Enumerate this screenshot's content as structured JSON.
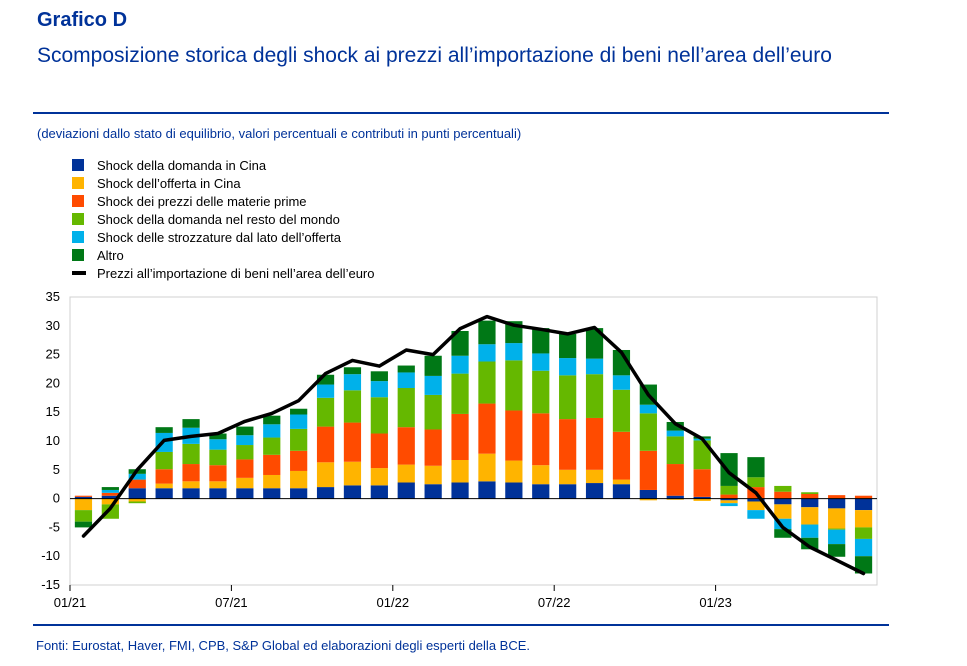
{
  "header": {
    "label": "Grafico D",
    "title": "Scomposizione storica degli shock ai prezzi all’importazione di beni nell’area dell’euro"
  },
  "subtitle": "(deviazioni dallo stato di equilibrio, valori percentuali e contributi in punti percentuali)",
  "source": "Fonti: Eurostat, Haver, FMI, CPB, S&P Global ed elaborazioni degli esperti della BCE.",
  "colors": {
    "china_demand": "#003299",
    "china_supply": "#FFB400",
    "commodity": "#FF4B00",
    "row_demand": "#65B800",
    "bottleneck": "#00B1EA",
    "other": "#007816",
    "line": "#000000"
  },
  "chart_data": {
    "type": "bar",
    "stacked": true,
    "title": "",
    "xlabel": "",
    "ylabel": "",
    "ylim": [
      -15,
      35
    ],
    "yticks": [
      35,
      30,
      25,
      20,
      15,
      10,
      5,
      0,
      -5,
      -10,
      -15
    ],
    "x_tick_labels": [
      {
        "index": 0,
        "label": "01/21"
      },
      {
        "index": 6,
        "label": "07/21"
      },
      {
        "index": 12,
        "label": "01/22"
      },
      {
        "index": 18,
        "label": "07/22"
      },
      {
        "index": 24,
        "label": "01/23"
      }
    ],
    "categories": [
      "01/21",
      "02/21",
      "03/21",
      "04/21",
      "05/21",
      "06/21",
      "07/21",
      "08/21",
      "09/21",
      "10/21",
      "11/21",
      "12/21",
      "01/22",
      "02/22",
      "03/22",
      "04/22",
      "05/22",
      "06/22",
      "07/22",
      "08/22",
      "09/22",
      "10/22",
      "11/22",
      "12/22",
      "01/23",
      "02/23",
      "03/23",
      "04/23",
      "05/23",
      "06/23"
    ],
    "series": [
      {
        "name": "Shock della domanda in Cina",
        "color_key": "china_demand",
        "values": [
          0.3,
          0.5,
          1.8,
          1.8,
          1.8,
          1.8,
          1.8,
          1.8,
          1.8,
          2.0,
          2.3,
          2.3,
          2.8,
          2.5,
          2.8,
          3.0,
          2.8,
          2.5,
          2.5,
          2.7,
          2.5,
          1.5,
          0.5,
          0.3,
          -0.3,
          -0.5,
          -1.0,
          -1.5,
          -1.7,
          -2.0
        ]
      },
      {
        "name": "Shock dell’offerta in Cina",
        "color_key": "china_supply",
        "values": [
          -2.0,
          -1.0,
          -0.5,
          0.8,
          1.2,
          1.2,
          1.8,
          2.3,
          3.0,
          4.3,
          4.1,
          3.0,
          3.1,
          3.2,
          3.9,
          4.8,
          3.8,
          3.3,
          2.5,
          2.3,
          0.8,
          -0.3,
          -0.2,
          -0.4,
          -0.5,
          -1.5,
          -2.5,
          -3.0,
          -3.5,
          -3.0
        ]
      },
      {
        "name": "Shock dei prezzi delle materie prime",
        "color_key": "commodity",
        "values": [
          0.2,
          0.5,
          1.5,
          2.5,
          3.0,
          2.8,
          3.2,
          3.5,
          3.5,
          6.2,
          6.8,
          6.0,
          6.5,
          6.3,
          8.0,
          8.7,
          8.7,
          9.0,
          8.8,
          9.0,
          8.3,
          6.8,
          5.5,
          4.8,
          0.7,
          2.0,
          1.2,
          0.8,
          0.6,
          0.5
        ]
      },
      {
        "name": "Shock della domanda nel resto del mondo",
        "color_key": "row_demand",
        "values": [
          -2.0,
          -2.5,
          -0.3,
          3.0,
          3.5,
          2.7,
          2.5,
          3.0,
          3.8,
          5.0,
          5.6,
          6.3,
          6.8,
          6.0,
          7.0,
          7.3,
          8.7,
          7.4,
          7.6,
          7.6,
          7.3,
          6.5,
          4.8,
          5.0,
          1.5,
          1.7,
          1.0,
          0.3,
          -0.2,
          -2.0
        ]
      },
      {
        "name": "Shock delle strozzature dal lato dell’offerta",
        "color_key": "bottleneck",
        "values": [
          0.0,
          0.5,
          1.0,
          3.3,
          2.8,
          1.8,
          1.7,
          2.3,
          2.5,
          2.3,
          2.8,
          2.8,
          2.7,
          3.3,
          3.1,
          3.0,
          3.0,
          3.0,
          3.0,
          2.7,
          2.5,
          1.5,
          1.0,
          0.3,
          -0.5,
          -1.5,
          -1.8,
          -2.3,
          -2.5,
          -3.0
        ]
      },
      {
        "name": "Altro",
        "color_key": "other",
        "values": [
          -1.0,
          0.5,
          0.8,
          1.0,
          1.5,
          1.0,
          1.5,
          1.5,
          1.0,
          1.7,
          1.2,
          1.7,
          1.2,
          3.5,
          4.3,
          4.1,
          3.8,
          4.4,
          4.2,
          5.3,
          4.4,
          3.5,
          1.5,
          0.4,
          5.7,
          3.5,
          -1.5,
          -2.0,
          -2.2,
          -3.0
        ]
      }
    ],
    "line": {
      "name": "Prezzi all’importazione di beni nell’area dell’euro",
      "color_key": "line",
      "values": [
        -6.5,
        -1.7,
        5.0,
        10.1,
        10.8,
        11.3,
        13.4,
        14.8,
        17.0,
        21.7,
        24.0,
        23.0,
        25.8,
        25.0,
        29.5,
        31.6,
        30.1,
        29.4,
        28.6,
        29.7,
        25.4,
        18.0,
        13.0,
        10.4,
        4.5,
        1.0,
        -5.0,
        -8.4,
        -10.7,
        -13.0
      ]
    }
  }
}
